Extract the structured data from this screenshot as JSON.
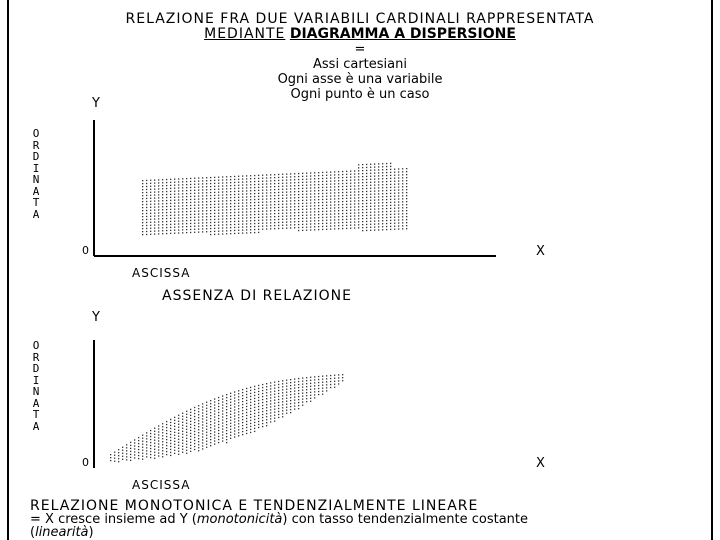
{
  "title": {
    "line1": "RELAZIONE FRA DUE VARIABILI CARDINALI RAPPRESENTATA",
    "line2_plain": "MEDIANTE",
    "line2_bold": "DIAGRAMMA A DISPERSIONE",
    "equals": "=",
    "sub1": "Assi cartesiani",
    "sub2": "Ogni asse è una variabile",
    "sub3": "Ogni punto è un caso"
  },
  "diagram1": {
    "y_letter": "Y",
    "x_letter": "X",
    "origin": "0",
    "y_name": "ORDINATA",
    "x_name": "ASCISSA",
    "caption": "ASSENZA DI RELAZIONE"
  },
  "diagram2": {
    "y_letter": "Y",
    "x_letter": "X",
    "origin": "0",
    "y_name": "ORDINATA",
    "x_name": "ASCISSA"
  },
  "bottom": {
    "line1": "RELAZIONE MONOTONICA E TENDENZIALMENTE LINEARE",
    "line2_a": "= X cresce insieme ad Y (",
    "line2_i": "monotonicità",
    "line2_b": ") con tasso tendenzialmente costante",
    "line3_a": "(",
    "line3_i": "linearità",
    "line3_b": ")"
  },
  "colors": {
    "ink": "#000000",
    "dots": "#333333",
    "background": "#ffffff"
  }
}
